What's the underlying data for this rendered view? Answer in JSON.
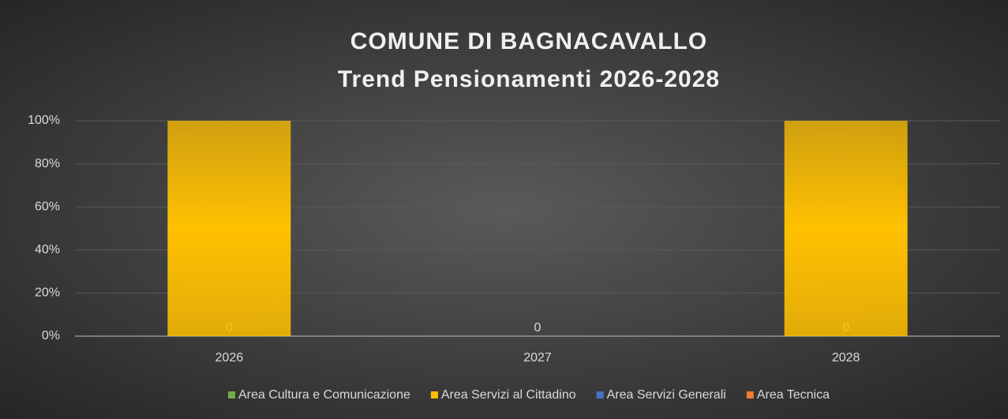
{
  "chart_data": {
    "type": "stacked_bar_percent",
    "title": [
      "COMUNE DI BAGNACAVALLO",
      "Trend Pensionamenti 2026-2028"
    ],
    "categories": [
      "2026",
      "2027",
      "2028"
    ],
    "series": [
      {
        "name": "Area Cultura e Comunicazione",
        "color": "#70ad47",
        "values": [
          0,
          0,
          0
        ],
        "data_labels": true
      },
      {
        "name": "Area Servizi al Cittadino",
        "color": "#ffc000",
        "values": [
          100,
          0,
          100
        ]
      },
      {
        "name": "Area Servizi Generali",
        "color": "#4472c4",
        "values": [
          0,
          0,
          0
        ]
      },
      {
        "name": "Area Tecnica",
        "color": "#ed7d31",
        "values": [
          0,
          0,
          0
        ]
      }
    ],
    "ylim": [
      0,
      100
    ],
    "yticks": [
      {
        "value": 0,
        "label": "0%"
      },
      {
        "value": 20,
        "label": "20%"
      },
      {
        "value": 40,
        "label": "40%"
      },
      {
        "value": 60,
        "label": "60%"
      },
      {
        "value": 80,
        "label": "80%"
      },
      {
        "value": 100,
        "label": "100%"
      }
    ],
    "grid": true,
    "legend": "bottom"
  }
}
